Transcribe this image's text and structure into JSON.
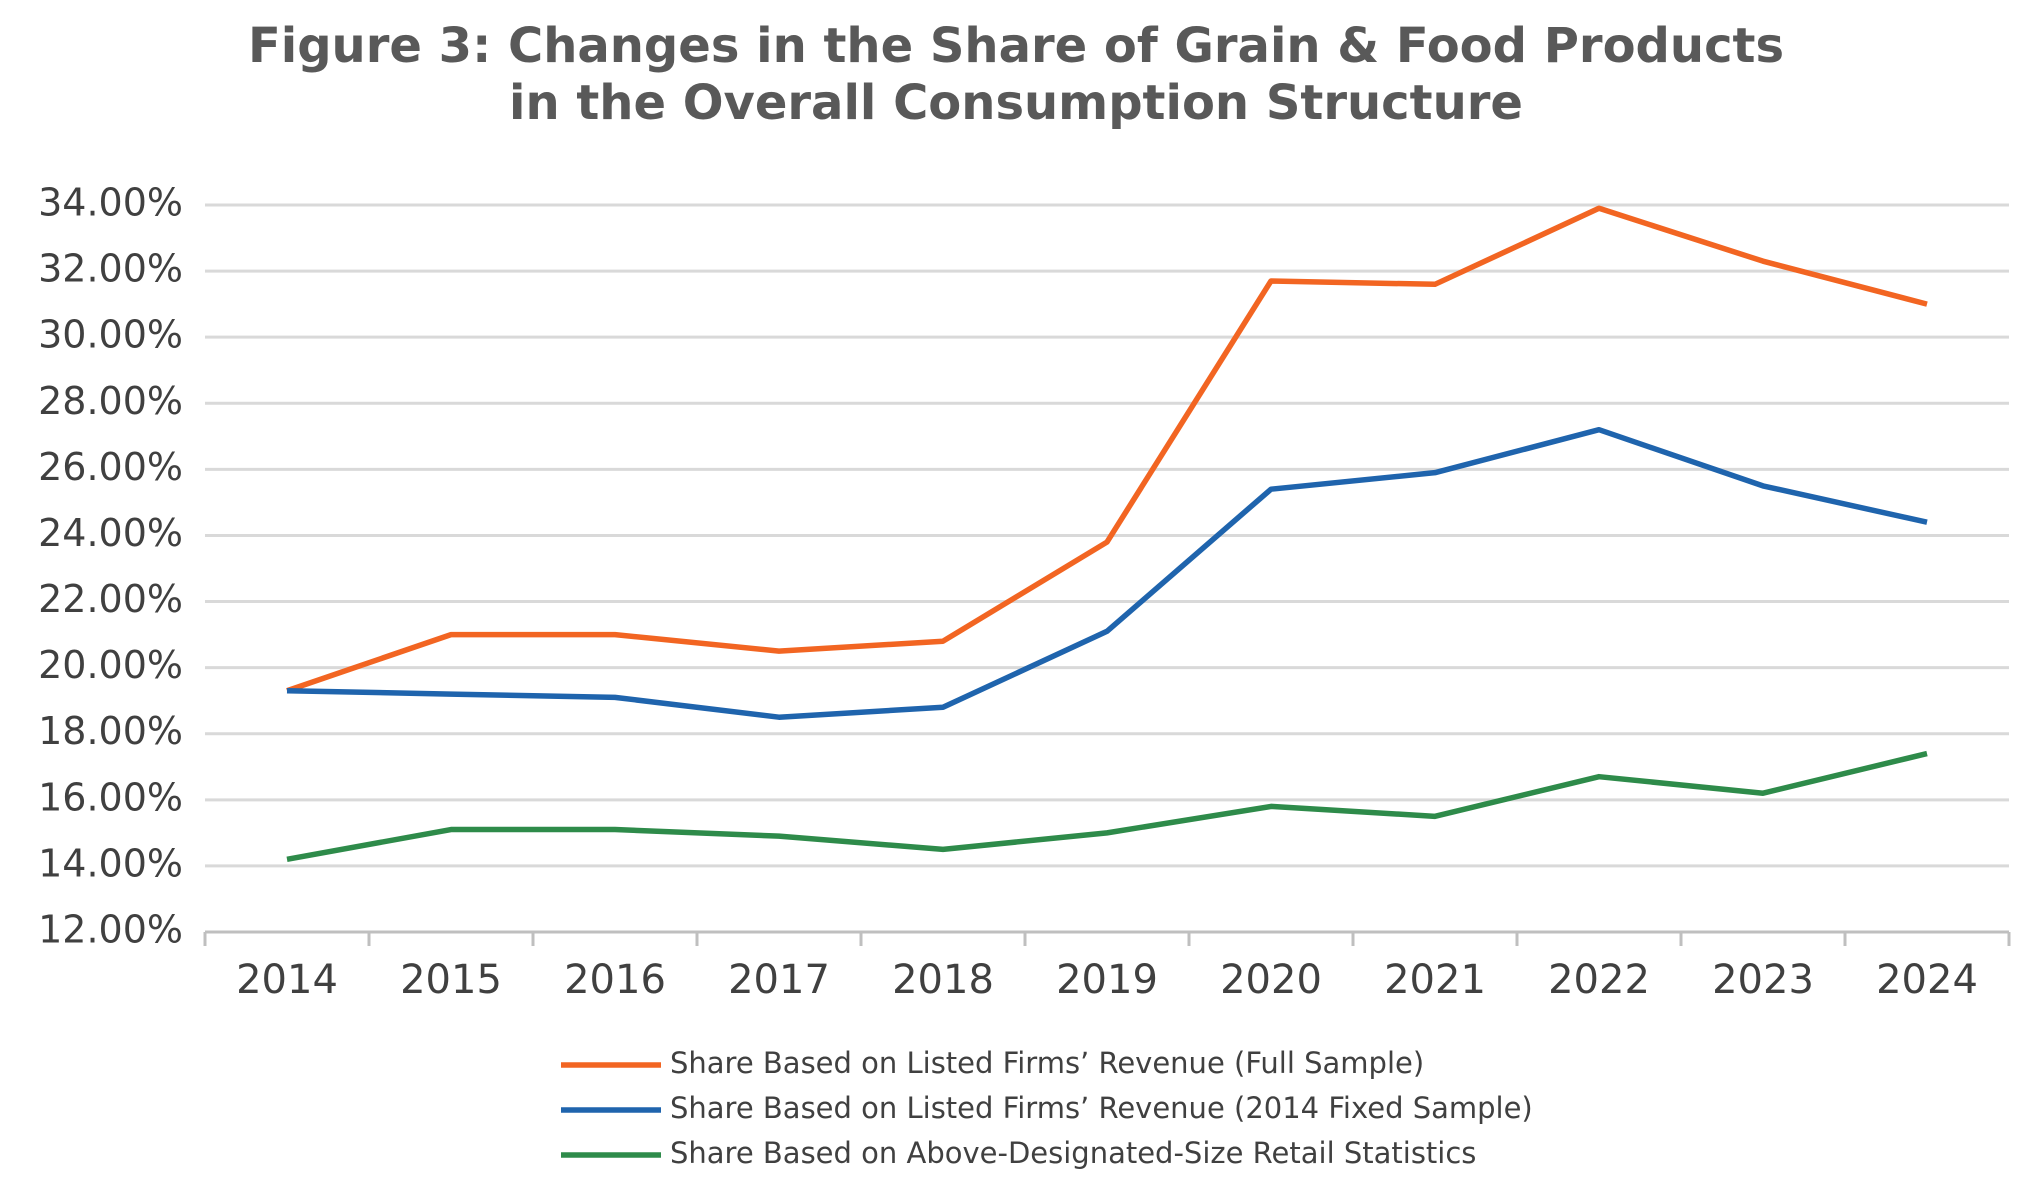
{
  "chart_data": {
    "type": "line",
    "title": "Figure 3: Changes in the Share of Grain & Food Products in the Overall Consumption Structure",
    "categories": [
      "2014",
      "2015",
      "2016",
      "2017",
      "2018",
      "2019",
      "2020",
      "2021",
      "2022",
      "2023",
      "2024"
    ],
    "series": [
      {
        "name": "Share Based on Listed Firms’ Revenue (Full Sample)",
        "color": "#f26522",
        "values": [
          19.3,
          21.0,
          21.0,
          20.5,
          20.8,
          23.8,
          31.7,
          31.6,
          33.9,
          32.3,
          31.0
        ]
      },
      {
        "name": "Share Based on Listed Firms’ Revenue (2014 Fixed Sample)",
        "color": "#1f64ad",
        "values": [
          19.3,
          19.2,
          19.1,
          18.5,
          18.8,
          21.1,
          25.4,
          25.9,
          27.2,
          25.5,
          24.4
        ]
      },
      {
        "name": "Share Based on Above-Designated-Size Retail Statistics",
        "color": "#2e8b4a",
        "values": [
          14.2,
          15.1,
          15.1,
          14.9,
          14.5,
          15.0,
          15.8,
          15.5,
          16.7,
          16.2,
          17.4
        ]
      }
    ],
    "ylim": [
      12,
      34
    ],
    "yticks": [
      {
        "value": 12,
        "label": "12.00%"
      },
      {
        "value": 14,
        "label": "14.00%"
      },
      {
        "value": 16,
        "label": "16.00%"
      },
      {
        "value": 18,
        "label": "18.00%"
      },
      {
        "value": 20,
        "label": "20.00%"
      },
      {
        "value": 22,
        "label": "22.00%"
      },
      {
        "value": 24,
        "label": "24.00%"
      },
      {
        "value": 26,
        "label": "26.00%"
      },
      {
        "value": 28,
        "label": "28.00%"
      },
      {
        "value": 30,
        "label": "30.00%"
      },
      {
        "value": 32,
        "label": "32.00%"
      },
      {
        "value": 34,
        "label": "34.00%"
      }
    ],
    "grid": true,
    "legend": "bottom"
  }
}
